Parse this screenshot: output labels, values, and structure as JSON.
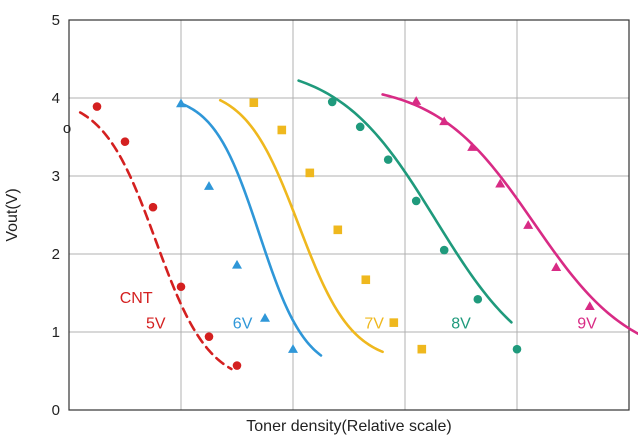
{
  "chart_data": {
    "type": "line",
    "xlabel": "Toner density(Relative scale)",
    "ylabel": "Vout(V)",
    "xlim": [
      0,
      10
    ],
    "ylim": [
      0,
      5
    ],
    "yticks": [
      "0",
      "1",
      "2",
      "3",
      "4",
      "5"
    ],
    "xtick_labels": [],
    "grid": true,
    "annotation": "o",
    "annotation_y": 3.6,
    "series": [
      {
        "label_lines": [
          "CNT",
          "5V"
        ],
        "color": "#d42020",
        "marker": "circle",
        "dash_pattern": "9 6",
        "curve": {
          "x0": 0.2,
          "x1": 2.9,
          "top": 4.02,
          "bottom": 0.32,
          "mid": 1.55,
          "k": 2.1
        },
        "points": [
          [
            0.5,
            3.89
          ],
          [
            1.0,
            3.44
          ],
          [
            1.5,
            2.6
          ],
          [
            2.0,
            1.58
          ],
          [
            2.5,
            0.94
          ],
          [
            3.0,
            0.57
          ]
        ],
        "label_x": [
          1.2,
          1.55
        ],
        "label_y": [
          1.45,
          1.12
        ]
      },
      {
        "label_lines": [
          "6V"
        ],
        "color": "#2f97d8",
        "marker": "triangle",
        "dash_pattern": "",
        "curve": {
          "x0": 2.0,
          "x1": 4.5,
          "top": 4.05,
          "bottom": 0.46,
          "mid": 3.4,
          "k": 2.4
        },
        "points": [
          [
            2.0,
            3.93
          ],
          [
            2.5,
            2.87
          ],
          [
            3.0,
            1.86
          ],
          [
            3.5,
            1.18
          ],
          [
            4.0,
            0.78
          ]
        ],
        "label_x": [
          3.1
        ],
        "label_y": [
          1.12
        ]
      },
      {
        "label_lines": [
          "7V"
        ],
        "color": "#efb81e",
        "marker": "square",
        "dash_pattern": "",
        "curve": {
          "x0": 2.7,
          "x1": 5.6,
          "top": 4.15,
          "bottom": 0.6,
          "mid": 4.1,
          "k": 2.1
        },
        "points": [
          [
            3.3,
            3.94
          ],
          [
            3.8,
            3.59
          ],
          [
            4.3,
            3.04
          ],
          [
            4.8,
            2.31
          ],
          [
            5.3,
            1.67
          ],
          [
            5.8,
            1.12
          ],
          [
            6.3,
            0.78
          ]
        ],
        "label_x": [
          5.45
        ],
        "label_y": [
          1.12
        ]
      },
      {
        "label_lines": [
          "8V"
        ],
        "color": "#1f9a7c",
        "marker": "circle",
        "dash_pattern": "",
        "curve": {
          "x0": 4.1,
          "x1": 7.9,
          "top": 4.45,
          "bottom": 0.42,
          "mid": 6.55,
          "k": 1.15
        },
        "points": [
          [
            4.7,
            3.95
          ],
          [
            5.2,
            3.63
          ],
          [
            5.7,
            3.21
          ],
          [
            6.2,
            2.68
          ],
          [
            6.7,
            2.05
          ],
          [
            7.3,
            1.42
          ],
          [
            8.0,
            0.78
          ]
        ],
        "label_x": [
          7.0
        ],
        "label_y": [
          1.12
        ]
      },
      {
        "label_lines": [
          "9V"
        ],
        "color": "#d82b85",
        "marker": "triangle",
        "dash_pattern": "",
        "curve": {
          "x0": 5.6,
          "x1": 10.2,
          "top": 4.2,
          "bottom": 0.6,
          "mid": 8.3,
          "k": 1.15
        },
        "points": [
          [
            6.2,
            3.96
          ],
          [
            6.7,
            3.7
          ],
          [
            7.2,
            3.37
          ],
          [
            7.7,
            2.9
          ],
          [
            8.2,
            2.37
          ],
          [
            8.7,
            1.83
          ],
          [
            9.3,
            1.33
          ]
        ],
        "label_x": [
          9.25
        ],
        "label_y": [
          1.12
        ]
      }
    ]
  }
}
